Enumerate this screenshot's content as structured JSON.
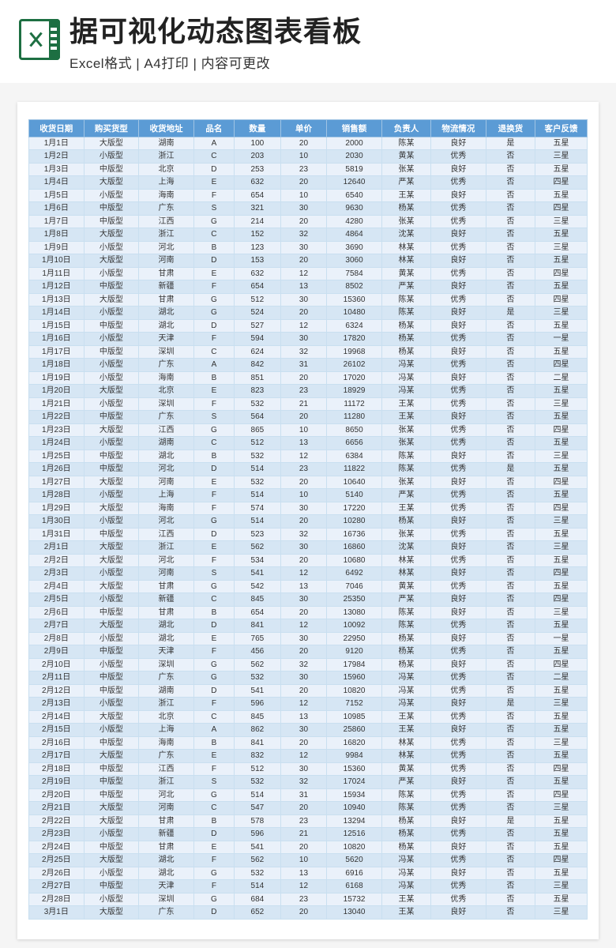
{
  "header": {
    "title": "据可视化动态图表看板",
    "subtitle": "Excel格式 | A4打印 | 内容可更改",
    "icon_name": "excel-icon"
  },
  "table": {
    "header_bg": "#5b9bd5",
    "header_fg": "#ffffff",
    "row_odd_bg": "#eaf1fa",
    "row_even_bg": "#d6e6f4",
    "border_color": "#c9dff0",
    "columns": [
      "收货日期",
      "购买货型",
      "收货地址",
      "品名",
      "数量",
      "单价",
      "销售额",
      "负责人",
      "物流情况",
      "退换货",
      "客户反馈"
    ],
    "rows": [
      [
        "1月1日",
        "大版型",
        "湖南",
        "A",
        "100",
        "20",
        "2000",
        "陈某",
        "良好",
        "是",
        "五星"
      ],
      [
        "1月2日",
        "小版型",
        "浙江",
        "C",
        "203",
        "10",
        "2030",
        "黄某",
        "优秀",
        "否",
        "三星"
      ],
      [
        "1月3日",
        "中版型",
        "北京",
        "D",
        "253",
        "23",
        "5819",
        "张某",
        "良好",
        "否",
        "五星"
      ],
      [
        "1月4日",
        "大版型",
        "上海",
        "E",
        "632",
        "20",
        "12640",
        "严某",
        "优秀",
        "否",
        "四星"
      ],
      [
        "1月5日",
        "小版型",
        "海南",
        "F",
        "654",
        "10",
        "6540",
        "王某",
        "良好",
        "否",
        "五星"
      ],
      [
        "1月6日",
        "中版型",
        "广东",
        "S",
        "321",
        "30",
        "9630",
        "杨某",
        "优秀",
        "否",
        "四星"
      ],
      [
        "1月7日",
        "中版型",
        "江西",
        "G",
        "214",
        "20",
        "4280",
        "张某",
        "优秀",
        "否",
        "三星"
      ],
      [
        "1月8日",
        "大版型",
        "浙江",
        "C",
        "152",
        "32",
        "4864",
        "沈某",
        "良好",
        "否",
        "五星"
      ],
      [
        "1月9日",
        "小版型",
        "河北",
        "B",
        "123",
        "30",
        "3690",
        "林某",
        "优秀",
        "否",
        "三星"
      ],
      [
        "1月10日",
        "大版型",
        "河南",
        "D",
        "153",
        "20",
        "3060",
        "林某",
        "良好",
        "否",
        "五星"
      ],
      [
        "1月11日",
        "小版型",
        "甘肃",
        "E",
        "632",
        "12",
        "7584",
        "黄某",
        "优秀",
        "否",
        "四星"
      ],
      [
        "1月12日",
        "中版型",
        "新疆",
        "F",
        "654",
        "13",
        "8502",
        "严某",
        "良好",
        "否",
        "五星"
      ],
      [
        "1月13日",
        "大版型",
        "甘肃",
        "G",
        "512",
        "30",
        "15360",
        "陈某",
        "优秀",
        "否",
        "四星"
      ],
      [
        "1月14日",
        "小版型",
        "湖北",
        "G",
        "524",
        "20",
        "10480",
        "陈某",
        "良好",
        "是",
        "三星"
      ],
      [
        "1月15日",
        "中版型",
        "湖北",
        "D",
        "527",
        "12",
        "6324",
        "杨某",
        "良好",
        "否",
        "五星"
      ],
      [
        "1月16日",
        "小版型",
        "天津",
        "F",
        "594",
        "30",
        "17820",
        "杨某",
        "优秀",
        "否",
        "一星"
      ],
      [
        "1月17日",
        "中版型",
        "深圳",
        "C",
        "624",
        "32",
        "19968",
        "杨某",
        "良好",
        "否",
        "五星"
      ],
      [
        "1月18日",
        "小版型",
        "广东",
        "A",
        "842",
        "31",
        "26102",
        "冯某",
        "优秀",
        "否",
        "四星"
      ],
      [
        "1月19日",
        "小版型",
        "海南",
        "B",
        "851",
        "20",
        "17020",
        "冯某",
        "良好",
        "否",
        "二星"
      ],
      [
        "1月20日",
        "大版型",
        "北京",
        "E",
        "823",
        "23",
        "18929",
        "冯某",
        "优秀",
        "否",
        "五星"
      ],
      [
        "1月21日",
        "小版型",
        "深圳",
        "F",
        "532",
        "21",
        "11172",
        "王某",
        "优秀",
        "否",
        "三星"
      ],
      [
        "1月22日",
        "中版型",
        "广东",
        "S",
        "564",
        "20",
        "11280",
        "王某",
        "良好",
        "否",
        "五星"
      ],
      [
        "1月23日",
        "大版型",
        "江西",
        "G",
        "865",
        "10",
        "8650",
        "张某",
        "优秀",
        "否",
        "四星"
      ],
      [
        "1月24日",
        "小版型",
        "湖南",
        "C",
        "512",
        "13",
        "6656",
        "张某",
        "优秀",
        "否",
        "五星"
      ],
      [
        "1月25日",
        "中版型",
        "湖北",
        "B",
        "532",
        "12",
        "6384",
        "陈某",
        "良好",
        "否",
        "三星"
      ],
      [
        "1月26日",
        "中版型",
        "河北",
        "D",
        "514",
        "23",
        "11822",
        "陈某",
        "优秀",
        "是",
        "五星"
      ],
      [
        "1月27日",
        "大版型",
        "河南",
        "E",
        "532",
        "20",
        "10640",
        "张某",
        "良好",
        "否",
        "四星"
      ],
      [
        "1月28日",
        "小版型",
        "上海",
        "F",
        "514",
        "10",
        "5140",
        "严某",
        "优秀",
        "否",
        "五星"
      ],
      [
        "1月29日",
        "大版型",
        "海南",
        "F",
        "574",
        "30",
        "17220",
        "王某",
        "优秀",
        "否",
        "四星"
      ],
      [
        "1月30日",
        "小版型",
        "河北",
        "G",
        "514",
        "20",
        "10280",
        "杨某",
        "良好",
        "否",
        "三星"
      ],
      [
        "1月31日",
        "中版型",
        "江西",
        "D",
        "523",
        "32",
        "16736",
        "张某",
        "优秀",
        "否",
        "五星"
      ],
      [
        "2月1日",
        "大版型",
        "浙江",
        "E",
        "562",
        "30",
        "16860",
        "沈某",
        "良好",
        "否",
        "三星"
      ],
      [
        "2月2日",
        "大版型",
        "河北",
        "F",
        "534",
        "20",
        "10680",
        "林某",
        "优秀",
        "否",
        "五星"
      ],
      [
        "2月3日",
        "小版型",
        "河南",
        "S",
        "541",
        "12",
        "6492",
        "林某",
        "良好",
        "否",
        "四星"
      ],
      [
        "2月4日",
        "大版型",
        "甘肃",
        "G",
        "542",
        "13",
        "7046",
        "黄某",
        "优秀",
        "否",
        "五星"
      ],
      [
        "2月5日",
        "小版型",
        "新疆",
        "C",
        "845",
        "30",
        "25350",
        "严某",
        "良好",
        "否",
        "四星"
      ],
      [
        "2月6日",
        "中版型",
        "甘肃",
        "B",
        "654",
        "20",
        "13080",
        "陈某",
        "良好",
        "否",
        "三星"
      ],
      [
        "2月7日",
        "大版型",
        "湖北",
        "D",
        "841",
        "12",
        "10092",
        "陈某",
        "优秀",
        "否",
        "五星"
      ],
      [
        "2月8日",
        "小版型",
        "湖北",
        "E",
        "765",
        "30",
        "22950",
        "杨某",
        "良好",
        "否",
        "一星"
      ],
      [
        "2月9日",
        "中版型",
        "天津",
        "F",
        "456",
        "20",
        "9120",
        "杨某",
        "优秀",
        "否",
        "五星"
      ],
      [
        "2月10日",
        "小版型",
        "深圳",
        "G",
        "562",
        "32",
        "17984",
        "杨某",
        "良好",
        "否",
        "四星"
      ],
      [
        "2月11日",
        "中版型",
        "广东",
        "G",
        "532",
        "30",
        "15960",
        "冯某",
        "优秀",
        "否",
        "二星"
      ],
      [
        "2月12日",
        "中版型",
        "湖南",
        "D",
        "541",
        "20",
        "10820",
        "冯某",
        "优秀",
        "否",
        "五星"
      ],
      [
        "2月13日",
        "小版型",
        "浙江",
        "F",
        "596",
        "12",
        "7152",
        "冯某",
        "良好",
        "是",
        "三星"
      ],
      [
        "2月14日",
        "大版型",
        "北京",
        "C",
        "845",
        "13",
        "10985",
        "王某",
        "优秀",
        "否",
        "五星"
      ],
      [
        "2月15日",
        "小版型",
        "上海",
        "A",
        "862",
        "30",
        "25860",
        "王某",
        "良好",
        "否",
        "五星"
      ],
      [
        "2月16日",
        "中版型",
        "海南",
        "B",
        "841",
        "20",
        "16820",
        "林某",
        "优秀",
        "否",
        "三星"
      ],
      [
        "2月17日",
        "大版型",
        "广东",
        "E",
        "832",
        "12",
        "9984",
        "林某",
        "优秀",
        "否",
        "五星"
      ],
      [
        "2月18日",
        "中版型",
        "江西",
        "F",
        "512",
        "30",
        "15360",
        "黄某",
        "优秀",
        "否",
        "四星"
      ],
      [
        "2月19日",
        "中版型",
        "浙江",
        "S",
        "532",
        "32",
        "17024",
        "严某",
        "良好",
        "否",
        "五星"
      ],
      [
        "2月20日",
        "中版型",
        "河北",
        "G",
        "514",
        "31",
        "15934",
        "陈某",
        "优秀",
        "否",
        "四星"
      ],
      [
        "2月21日",
        "大版型",
        "河南",
        "C",
        "547",
        "20",
        "10940",
        "陈某",
        "优秀",
        "否",
        "三星"
      ],
      [
        "2月22日",
        "大版型",
        "甘肃",
        "B",
        "578",
        "23",
        "13294",
        "杨某",
        "良好",
        "是",
        "五星"
      ],
      [
        "2月23日",
        "小版型",
        "新疆",
        "D",
        "596",
        "21",
        "12516",
        "杨某",
        "优秀",
        "否",
        "五星"
      ],
      [
        "2月24日",
        "中版型",
        "甘肃",
        "E",
        "541",
        "20",
        "10820",
        "杨某",
        "良好",
        "否",
        "五星"
      ],
      [
        "2月25日",
        "大版型",
        "湖北",
        "F",
        "562",
        "10",
        "5620",
        "冯某",
        "优秀",
        "否",
        "四星"
      ],
      [
        "2月26日",
        "小版型",
        "湖北",
        "G",
        "532",
        "13",
        "6916",
        "冯某",
        "良好",
        "否",
        "五星"
      ],
      [
        "2月27日",
        "中版型",
        "天津",
        "F",
        "514",
        "12",
        "6168",
        "冯某",
        "优秀",
        "否",
        "三星"
      ],
      [
        "2月28日",
        "小版型",
        "深圳",
        "G",
        "684",
        "23",
        "15732",
        "王某",
        "优秀",
        "否",
        "五星"
      ],
      [
        "3月1日",
        "大版型",
        "广东",
        "D",
        "652",
        "20",
        "13040",
        "王某",
        "良好",
        "否",
        "三星"
      ]
    ]
  }
}
